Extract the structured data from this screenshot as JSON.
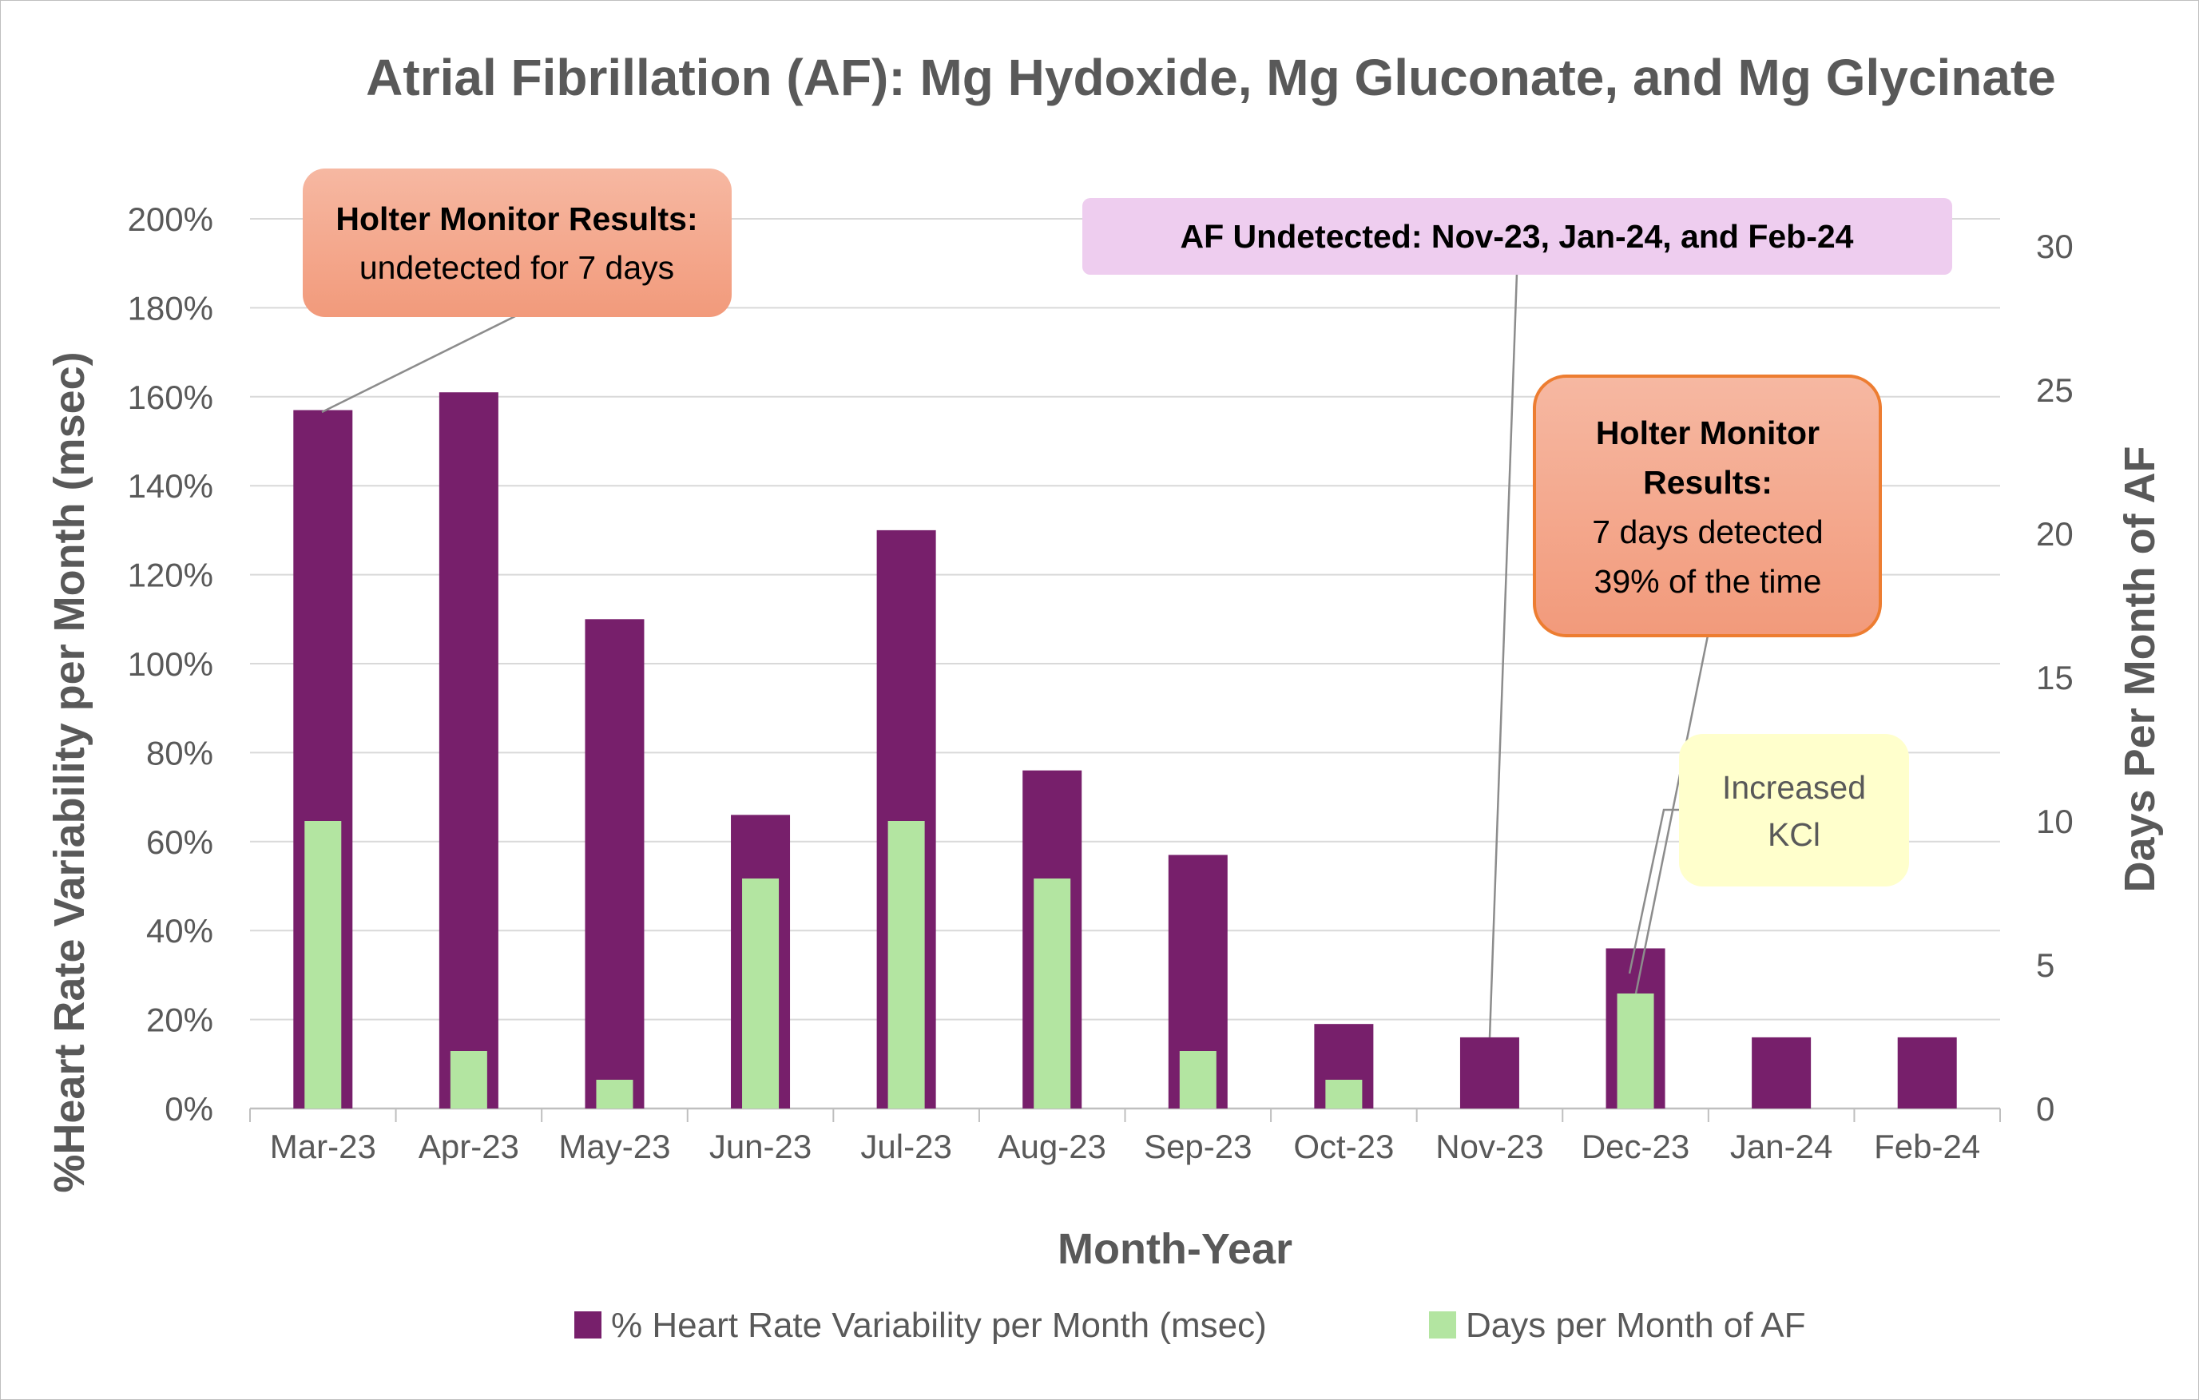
{
  "chart_data": {
    "type": "bar",
    "title": "Atrial Fibrillation (AF): Mg Hydoxide, Mg Gluconate, and Mg Glycinate",
    "xlabel": "Month-Year",
    "ylabel_left": "%Heart Rate Variability per Month (msec)",
    "ylabel_right": "Days Per Month of AF",
    "categories": [
      "Mar-23",
      "Apr-23",
      "May-23",
      "Jun-23",
      "Jul-23",
      "Aug-23",
      "Sep-23",
      "Oct-23",
      "Nov-23",
      "Dec-23",
      "Jan-24",
      "Feb-24"
    ],
    "series": [
      {
        "name": "% Heart Rate Variability per Month (msec)",
        "axis": "left",
        "color": "#771F6B",
        "values": [
          157,
          161,
          110,
          66,
          130,
          76,
          57,
          19,
          16,
          36,
          16,
          16
        ]
      },
      {
        "name": "Days per Month of AF",
        "axis": "right",
        "color": "#B3E5A1",
        "values": [
          10,
          2,
          1,
          8,
          10,
          8,
          2,
          1,
          0,
          4,
          0,
          0
        ]
      }
    ],
    "ylim_left": [
      0,
      200
    ],
    "yticks_left": [
      "0%",
      "20%",
      "40%",
      "60%",
      "80%",
      "100%",
      "120%",
      "140%",
      "160%",
      "180%",
      "200%"
    ],
    "ylim_right": [
      0,
      30
    ],
    "yticks_right": [
      "0",
      "5",
      "10",
      "15",
      "20",
      "25",
      "30"
    ],
    "grid": true,
    "legend_position": "bottom"
  },
  "annotations": {
    "holter_mar": {
      "line1": "Holter Monitor Results:",
      "line2": "undetected for 7 days",
      "fill": "#F4A58A",
      "target_category": "Mar-23"
    },
    "af_undetected": {
      "text": "AF Undetected: Nov-23, Jan-24, and Feb-24",
      "fill": "#EECDEF",
      "target_category": "Nov-23"
    },
    "holter_dec": {
      "line1": "Holter Monitor",
      "line2": "Results:",
      "line3": "7 days detected",
      "line4": "39% of the time",
      "fill": "#F4A58A",
      "border": "#ED7D31",
      "target_category": "Dec-23"
    },
    "kcl": {
      "line1": "Increased",
      "line2": "KCl",
      "fill": "#FFFFCC",
      "target_category": "Dec-23"
    }
  }
}
